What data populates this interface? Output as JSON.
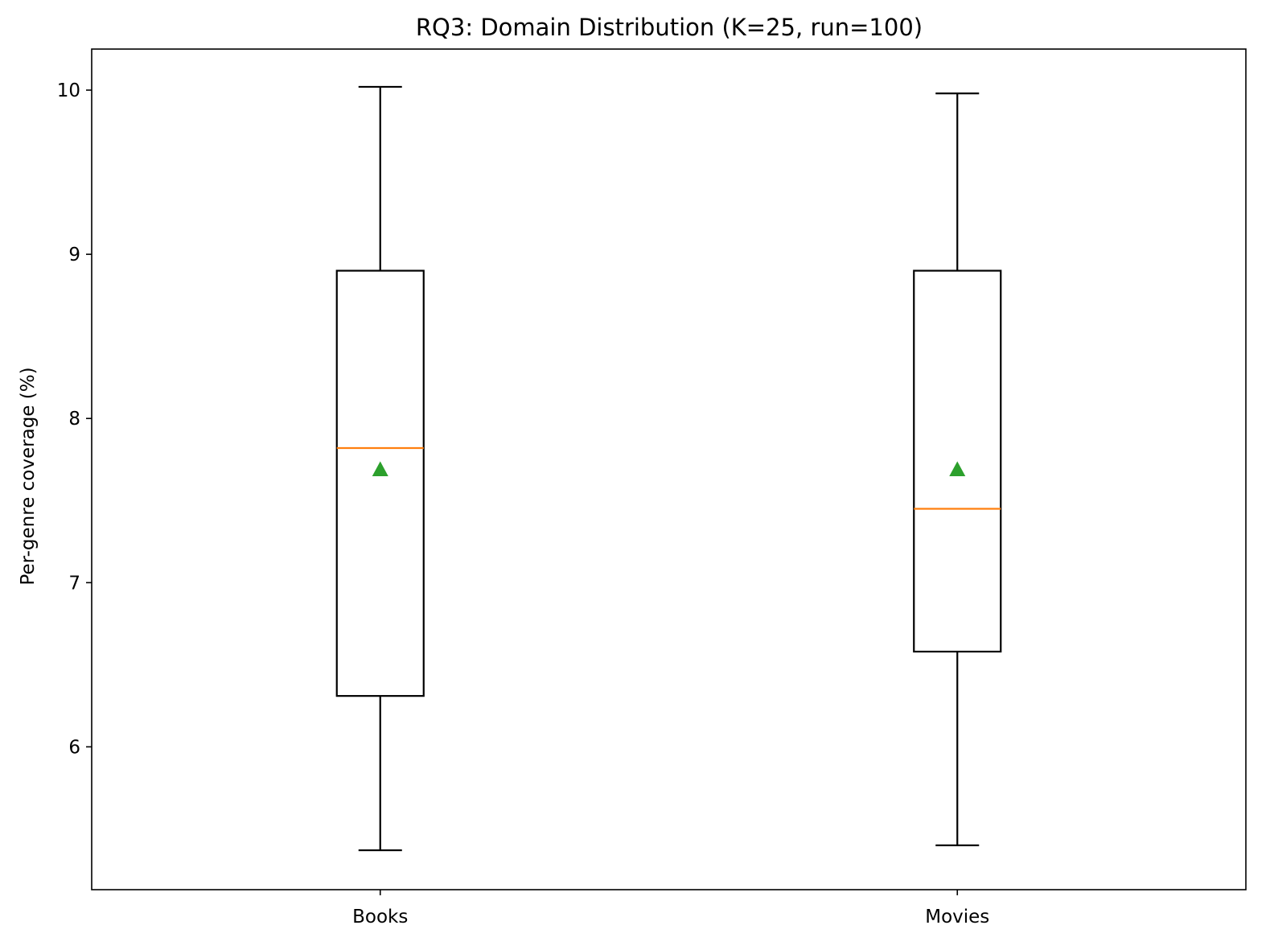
{
  "chart_data": {
    "type": "box",
    "title": "RQ3: Domain Distribution (K=25, run=100)",
    "xlabel": "",
    "ylabel": "Per-genre coverage (%)",
    "categories": [
      "Books",
      "Movies"
    ],
    "ylim": [
      5.13,
      10.25
    ],
    "yticks": [
      6,
      7,
      8,
      9,
      10
    ],
    "ytick_labels": [
      "6",
      "7",
      "8",
      "9",
      "10"
    ],
    "grid": false,
    "boxes": [
      {
        "name": "Books",
        "whisker_low": 5.37,
        "q1": 6.31,
        "median": 7.82,
        "q3": 8.9,
        "whisker_high": 10.02,
        "mean": 7.69
      },
      {
        "name": "Movies",
        "whisker_low": 5.4,
        "q1": 6.58,
        "median": 7.45,
        "q3": 8.9,
        "whisker_high": 9.98,
        "mean": 7.69
      }
    ],
    "colors": {
      "box": "#000000",
      "median": "#ff7f0e",
      "mean": "#2ca02c"
    }
  }
}
